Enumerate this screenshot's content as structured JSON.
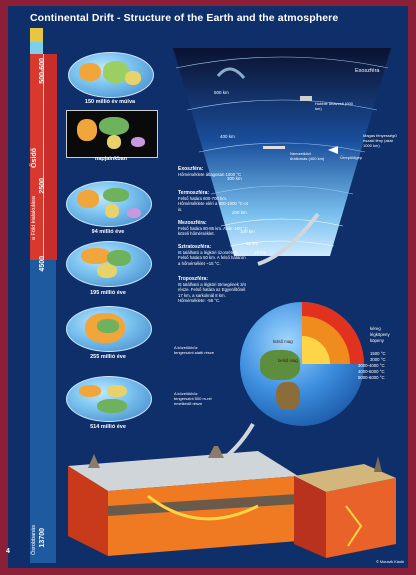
{
  "title": "Continental Drift - Structure of the Earth and the atmosphere",
  "page_number": "4",
  "timeline": {
    "numbers": [
      "500-600",
      "2500",
      "4500",
      "13700"
    ],
    "labels": [
      "Ősidő",
      "a Föld kialakulása",
      "Ősrobbanás"
    ],
    "colors": {
      "top": "#e9c544",
      "band2": "#7ed0ea",
      "red": "#d9382e",
      "blue": "#1e5aa0"
    }
  },
  "maps": [
    {
      "caption": "150 millió év múlva"
    },
    {
      "caption": "napjainkban"
    },
    {
      "caption": "94 millió éve"
    },
    {
      "caption": "195 millió éve"
    },
    {
      "caption": "255 millió éve"
    },
    {
      "caption": "514 millió éve"
    }
  ],
  "atmosphere": {
    "label": "Exoszféra",
    "altitudes": [
      "500 km",
      "400 km",
      "300 km",
      "200 km",
      "100 km",
      "50 km",
      "15 km"
    ],
    "notes": {
      "sat": "Hubble űrtávcső (600 km)",
      "iss": "Nemzetközi űrállomás (400 km)",
      "shuttle": "Űrrepülőgép",
      "aurora": "Magas fényességű északi fény (akár 1000 km)"
    }
  },
  "layer_text": [
    {
      "head": "Exoszféra:",
      "body": "Hőmérséklete átlagosan 1000 °C"
    },
    {
      "head": "Termoszféra:",
      "body": "Felső határa 600-700 km. Hőmérséklete eléri a 800-1000 °C-ot is."
    },
    {
      "head": "Mezoszféra:",
      "body": "Felső határa 80-85 km. Akár -100 °C közeli hőmérséklet."
    },
    {
      "head": "Sztratoszféra:",
      "body": "Itt található a légköri ózonréteg. Felső határa 50 km. A felső határon a hőmérséklet ~15 °C."
    },
    {
      "head": "Troposzféra:",
      "body": "Itt található a légköri tömegének 3/4 része. Felső határa az Egyenlítőnél 17 km, a sarkoknál 8 km. Hőmérséklete: -56 °C."
    }
  ],
  "map_notes": [
    "A közelükhöz tengerszint alatti része",
    "A közelükhöz tengerszint 500 m-rel emelkedő része"
  ],
  "earth_layers": {
    "labels": [
      "kéreg",
      "légköpeny",
      "köpeny",
      "külső mag",
      "belső mag"
    ],
    "temps": [
      "1500 °C",
      "3000 °C",
      "3000-4000 °C",
      "4000-5000 °C",
      "5000-6000 °C"
    ]
  },
  "credit": "© Moravik Kiadó"
}
